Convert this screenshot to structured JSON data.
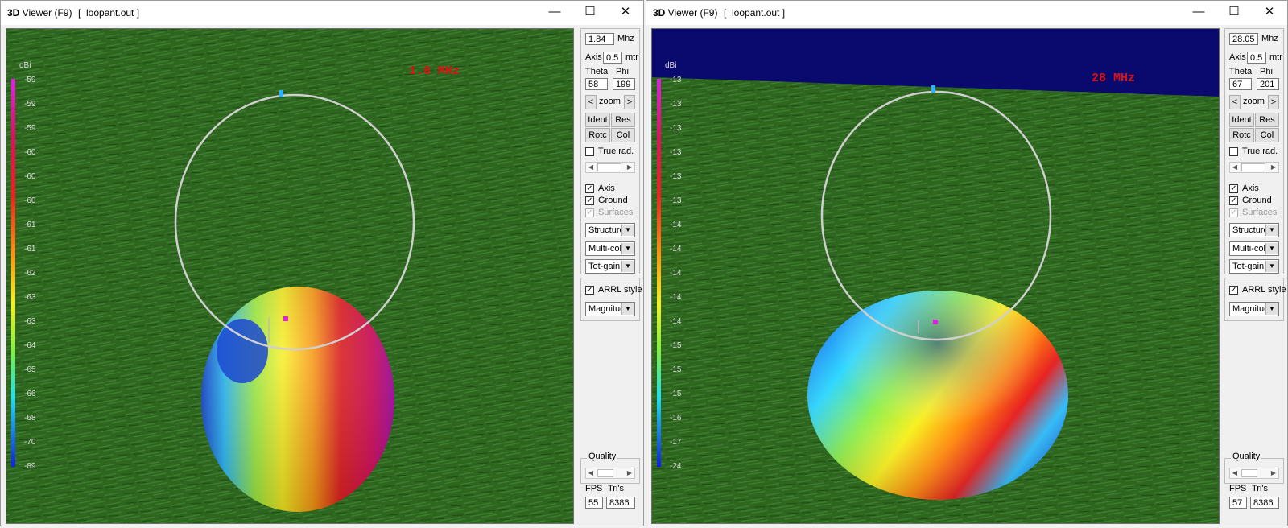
{
  "windows": [
    {
      "title_prefix": "3D",
      "title_rest": " Viewer (F9)",
      "file": "[  loopant.out ]",
      "band_label": "1.8 MHz",
      "scale_unit": "dBi",
      "scale_values": [
        "-59",
        "-59",
        "-59",
        "-60",
        "-60",
        "-60",
        "-61",
        "-61",
        "-62",
        "-63",
        "-63",
        "-64",
        "-65",
        "-66",
        "-68",
        "-70",
        "-89"
      ],
      "freq_value": "1.84",
      "freq_unit": "Mhz",
      "axis_label": "Axis",
      "axis_value": "0.5",
      "axis_unit": "mtr",
      "theta_label": "Theta",
      "phi_label": "Phi",
      "theta_value": "58",
      "phi_value": "199",
      "zoom_label": "zoom",
      "ident_label": "Ident",
      "res_label": "Res",
      "rotc_label": "Rotc",
      "col_label": "Col",
      "truerad_label": "True rad.",
      "axis_chk_label": "Axis",
      "ground_label": "Ground",
      "surfaces_label": "Surfaces",
      "structure_value": "Structure",
      "color_value": "Multi-colo",
      "gain_value": "Tot-gain",
      "arrl_label": "ARRL style",
      "mag_value": "Magnitud",
      "quality_label": "Quality",
      "fps_label": "FPS",
      "tris_label": "Tri's",
      "fps_value": "55",
      "tris_value": "8386",
      "sky": false
    },
    {
      "title_prefix": "3D",
      "title_rest": " Viewer (F9)",
      "file": "[  loopant.out ]",
      "band_label": "28 MHz",
      "scale_unit": "dBi",
      "scale_values": [
        "-13",
        "-13",
        "-13",
        "-13",
        "-13",
        "-13",
        "-14",
        "-14",
        "-14",
        "-14",
        "-14",
        "-15",
        "-15",
        "-15",
        "-16",
        "-17",
        "-24"
      ],
      "freq_value": "28.05",
      "freq_unit": "Mhz",
      "axis_label": "Axis",
      "axis_value": "0.5",
      "axis_unit": "mtr",
      "theta_label": "Theta",
      "phi_label": "Phi",
      "theta_value": "67",
      "phi_value": "201",
      "zoom_label": "zoom",
      "ident_label": "Ident",
      "res_label": "Res",
      "rotc_label": "Rotc",
      "col_label": "Col",
      "truerad_label": "True rad.",
      "axis_chk_label": "Axis",
      "ground_label": "Ground",
      "surfaces_label": "Surfaces",
      "structure_value": "Structure",
      "color_value": "Multi-colo",
      "gain_value": "Tot-gain",
      "arrl_label": "ARRL style",
      "mag_value": "Magnitud",
      "quality_label": "Quality",
      "fps_label": "FPS",
      "tris_label": "Tri's",
      "fps_value": "57",
      "tris_value": "8386",
      "sky": true
    }
  ],
  "icons": {
    "minimize": "minimize-icon",
    "maximize": "maximize-icon",
    "close": "close-icon"
  },
  "colors": {
    "ground": "#2f6a22",
    "sky": "#0a0a6e",
    "band_label": "#e01010",
    "loop": "#c8c8c8"
  }
}
